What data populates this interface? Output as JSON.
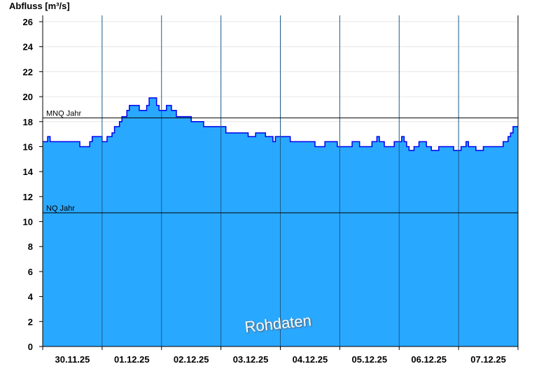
{
  "chart_data": {
    "type": "area",
    "title": "",
    "ylabel": "Abfluss [m³/s]",
    "xlabel": "",
    "ylim": [
      0,
      26.5
    ],
    "xlim": [
      "2025-11-30T00:00",
      "2025-12-08T00:00"
    ],
    "yticks": [
      0,
      2,
      4,
      6,
      8,
      10,
      12,
      14,
      16,
      18,
      20,
      22,
      24,
      26
    ],
    "xtick_labels": [
      "30.11.25",
      "01.12.25",
      "02.12.25",
      "03.12.25",
      "04.12.25",
      "05.12.25",
      "06.12.25",
      "07.12.25"
    ],
    "grid": true,
    "colors": {
      "fill": "#29a8ff",
      "line": "#0000ee",
      "reference": "#000000"
    },
    "reference_lines": [
      {
        "label": "MNQ Jahr",
        "value": 18.3
      },
      {
        "label": "NQ Jahr",
        "value": 10.7
      }
    ],
    "watermark": "Rohdaten",
    "series": [
      {
        "step": true,
        "points": [
          [
            "2025-11-30T00:00",
            16.4
          ],
          [
            "2025-11-30T02:00",
            16.8
          ],
          [
            "2025-11-30T03:00",
            16.4
          ],
          [
            "2025-11-30T15:00",
            16.0
          ],
          [
            "2025-11-30T19:00",
            16.4
          ],
          [
            "2025-11-30T20:00",
            16.8
          ],
          [
            "2025-12-01T00:00",
            16.4
          ],
          [
            "2025-12-01T02:00",
            16.8
          ],
          [
            "2025-12-01T04:00",
            17.1
          ],
          [
            "2025-12-01T05:00",
            17.6
          ],
          [
            "2025-12-01T07:00",
            18.0
          ],
          [
            "2025-12-01T08:00",
            18.4
          ],
          [
            "2025-12-01T10:00",
            18.9
          ],
          [
            "2025-12-01T11:00",
            19.3
          ],
          [
            "2025-12-01T15:00",
            18.9
          ],
          [
            "2025-12-01T18:00",
            19.3
          ],
          [
            "2025-12-01T19:00",
            19.9
          ],
          [
            "2025-12-01T22:00",
            19.3
          ],
          [
            "2025-12-01T23:00",
            18.9
          ],
          [
            "2025-12-02T02:00",
            19.3
          ],
          [
            "2025-12-02T04:00",
            18.9
          ],
          [
            "2025-12-02T06:00",
            18.4
          ],
          [
            "2025-12-02T12:00",
            18.0
          ],
          [
            "2025-12-02T17:00",
            17.6
          ],
          [
            "2025-12-03T02:00",
            17.1
          ],
          [
            "2025-12-03T11:00",
            16.8
          ],
          [
            "2025-12-03T14:00",
            17.1
          ],
          [
            "2025-12-03T18:00",
            16.8
          ],
          [
            "2025-12-03T21:00",
            16.4
          ],
          [
            "2025-12-03T22:00",
            16.8
          ],
          [
            "2025-12-04T04:00",
            16.4
          ],
          [
            "2025-12-04T14:00",
            16.0
          ],
          [
            "2025-12-04T18:00",
            16.4
          ],
          [
            "2025-12-04T23:00",
            16.0
          ],
          [
            "2025-12-05T05:00",
            16.4
          ],
          [
            "2025-12-05T08:00",
            16.0
          ],
          [
            "2025-12-05T13:00",
            16.4
          ],
          [
            "2025-12-05T15:00",
            16.8
          ],
          [
            "2025-12-05T16:00",
            16.4
          ],
          [
            "2025-12-05T18:00",
            16.0
          ],
          [
            "2025-12-05T22:00",
            16.4
          ],
          [
            "2025-12-06T01:00",
            16.8
          ],
          [
            "2025-12-06T02:00",
            16.4
          ],
          [
            "2025-12-06T03:00",
            16.0
          ],
          [
            "2025-12-06T04:00",
            15.7
          ],
          [
            "2025-12-06T06:00",
            16.0
          ],
          [
            "2025-12-06T08:00",
            16.4
          ],
          [
            "2025-12-06T11:00",
            16.0
          ],
          [
            "2025-12-06T13:00",
            15.7
          ],
          [
            "2025-12-06T16:00",
            16.0
          ],
          [
            "2025-12-06T22:00",
            15.7
          ],
          [
            "2025-12-07T01:00",
            16.0
          ],
          [
            "2025-12-07T03:00",
            16.4
          ],
          [
            "2025-12-07T04:00",
            16.0
          ],
          [
            "2025-12-07T07:00",
            15.7
          ],
          [
            "2025-12-07T10:00",
            16.0
          ],
          [
            "2025-12-07T18:00",
            16.4
          ],
          [
            "2025-12-07T20:00",
            16.8
          ],
          [
            "2025-12-07T21:00",
            17.1
          ],
          [
            "2025-12-07T22:00",
            17.6
          ],
          [
            "2025-12-08T00:00",
            17.6
          ]
        ]
      }
    ]
  }
}
